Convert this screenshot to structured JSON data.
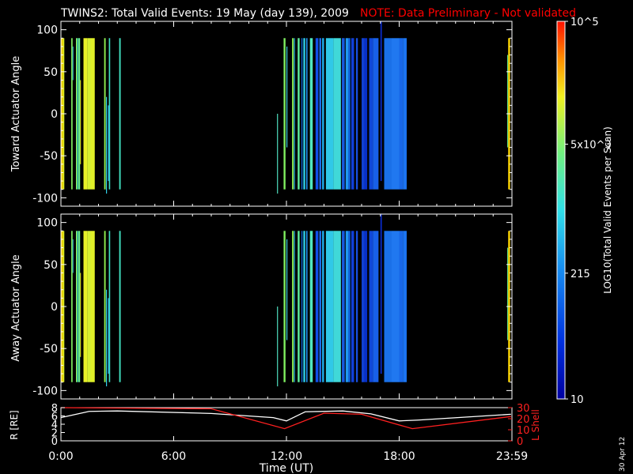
{
  "header": {
    "title": "TWINS2: Total Valid Events: 19 May (day 139), 2009",
    "note": "NOTE: Data Preliminary - Not validated"
  },
  "footer": {
    "xlabel": "Time (UT)",
    "date_stamp": "30 Apr 12"
  },
  "colors": {
    "background": "#000000",
    "axes": "#ffffff",
    "note": "#ff0000",
    "r_line": "#ffffff",
    "lshell_line": "#ff2020"
  },
  "chart_data": [
    {
      "type": "heatmap",
      "panel": "top",
      "ylabel": "Toward Actuator Angle",
      "xlim_hours": [
        0,
        24
      ],
      "ylim": [
        -110,
        110
      ],
      "yticks": [
        100,
        50,
        0,
        -50,
        -100
      ],
      "xticks": [
        "0:00",
        "6:00",
        "12:00",
        "18:00",
        "23:59"
      ],
      "angle_range": [
        -90,
        90
      ],
      "colorbar": {
        "label": "LOG10(Total Valid Events per Scan)",
        "scale": "log",
        "range": [
          10,
          100000
        ],
        "ticks": [
          "10",
          "215",
          "5x10^3",
          "10^5"
        ],
        "placement": "right"
      },
      "columns": [
        {
          "t0": 0.0,
          "t1": 0.1,
          "color": "#ffd800"
        },
        {
          "t0": 0.1,
          "t1": 0.18,
          "color": "#e0f020"
        },
        {
          "t0": 0.55,
          "t1": 0.62,
          "color": "#80f060"
        },
        {
          "t0": 0.62,
          "t1": 0.66,
          "color": "#30c0e0",
          "ymin": 40,
          "ymax": 80
        },
        {
          "t0": 0.8,
          "t1": 0.84,
          "color": "#a0f040"
        },
        {
          "t0": 0.84,
          "t1": 0.88,
          "color": "#40e0d0"
        },
        {
          "t0": 0.9,
          "t1": 1.02,
          "color": "#60e890"
        },
        {
          "t0": 1.02,
          "t1": 1.06,
          "color": "#f0f020",
          "ymin": -60,
          "ymax": 40
        },
        {
          "t0": 1.2,
          "t1": 1.4,
          "color": "#e8f028"
        },
        {
          "t0": 1.4,
          "t1": 1.6,
          "color": "#d8f030"
        },
        {
          "t0": 1.6,
          "t1": 1.8,
          "color": "#e0f028"
        },
        {
          "t0": 2.3,
          "t1": 2.38,
          "color": "#90f050"
        },
        {
          "t0": 2.4,
          "t1": 2.45,
          "color": "#30d0e8",
          "ymin": -95,
          "ymax": 20
        },
        {
          "t0": 2.5,
          "t1": 2.55,
          "color": "#20b0f0",
          "ymin": -80,
          "ymax": 10
        },
        {
          "t0": 2.55,
          "t1": 2.62,
          "color": "#40e0c0"
        },
        {
          "t0": 3.1,
          "t1": 3.18,
          "color": "#40e0c0"
        },
        {
          "t0": 11.5,
          "t1": 11.55,
          "color": "#50e0c0",
          "ymin": -95,
          "ymax": 0
        },
        {
          "t0": 11.85,
          "t1": 11.95,
          "color": "#80f060"
        },
        {
          "t0": 12.0,
          "t1": 12.05,
          "color": "#40d0e0",
          "ymin": -40,
          "ymax": 80
        },
        {
          "t0": 12.3,
          "t1": 12.38,
          "color": "#90f050"
        },
        {
          "t0": 12.4,
          "t1": 12.45,
          "color": "#30c0f0"
        },
        {
          "t0": 12.6,
          "t1": 12.7,
          "color": "#60f0a0"
        },
        {
          "t0": 12.8,
          "t1": 12.85,
          "color": "#1070f0"
        },
        {
          "t0": 12.9,
          "t1": 13.0,
          "color": "#30d0e8"
        },
        {
          "t0": 13.05,
          "t1": 13.12,
          "color": "#2090f0"
        },
        {
          "t0": 13.25,
          "t1": 13.4,
          "color": "#50e8c0"
        },
        {
          "t0": 13.55,
          "t1": 13.7,
          "color": "#1050e8"
        },
        {
          "t0": 13.75,
          "t1": 13.85,
          "color": "#2070f0"
        },
        {
          "t0": 13.9,
          "t1": 14.0,
          "color": "#20b0f0"
        },
        {
          "t0": 14.1,
          "t1": 14.5,
          "color": "#30c8e8"
        },
        {
          "t0": 14.5,
          "t1": 14.9,
          "color": "#40d8d8"
        },
        {
          "t0": 14.95,
          "t1": 15.1,
          "color": "#1858e0"
        },
        {
          "t0": 15.15,
          "t1": 15.3,
          "color": "#2098f0"
        },
        {
          "t0": 15.3,
          "t1": 15.4,
          "color": "#1060e0"
        },
        {
          "t0": 15.45,
          "t1": 15.6,
          "color": "#1040d8"
        },
        {
          "t0": 15.7,
          "t1": 15.8,
          "color": "#1850e0"
        },
        {
          "t0": 16.0,
          "t1": 16.15,
          "color": "#1040d0"
        },
        {
          "t0": 16.15,
          "t1": 16.3,
          "color": "#0830c8"
        },
        {
          "t0": 16.4,
          "t1": 16.6,
          "color": "#1048d8"
        },
        {
          "t0": 16.6,
          "t1": 16.9,
          "color": "#1860e8"
        },
        {
          "t0": 17.0,
          "t1": 17.08,
          "color": "#0828c0",
          "ymin": -80,
          "ymax": 110
        },
        {
          "t0": 17.2,
          "t1": 17.6,
          "color": "#1a70e8"
        },
        {
          "t0": 17.6,
          "t1": 18.0,
          "color": "#2078f0"
        },
        {
          "t0": 18.0,
          "t1": 18.2,
          "color": "#1868e8"
        },
        {
          "t0": 18.2,
          "t1": 18.4,
          "color": "#1c74f0"
        },
        {
          "t0": 23.75,
          "t1": 23.8,
          "color": "#60e890",
          "ymin": -40,
          "ymax": 70
        },
        {
          "t0": 23.8,
          "t1": 23.9,
          "color": "#ffd800"
        }
      ]
    },
    {
      "type": "heatmap",
      "panel": "bottom",
      "ylabel": "Away Actuator Angle",
      "xlim_hours": [
        0,
        24
      ],
      "ylim": [
        -110,
        110
      ],
      "yticks": [
        100,
        50,
        0,
        -50,
        -100
      ],
      "xticks": [
        "0:00",
        "6:00",
        "12:00",
        "18:00",
        "23:59"
      ],
      "angle_range": [
        -90,
        90
      ],
      "columns": [
        {
          "t0": 0.0,
          "t1": 0.1,
          "color": "#ffd800"
        },
        {
          "t0": 0.1,
          "t1": 0.18,
          "color": "#e0f020"
        },
        {
          "t0": 0.55,
          "t1": 0.62,
          "color": "#80f060"
        },
        {
          "t0": 0.62,
          "t1": 0.66,
          "color": "#30c0e0",
          "ymin": 40,
          "ymax": 80
        },
        {
          "t0": 0.8,
          "t1": 0.84,
          "color": "#a0f040"
        },
        {
          "t0": 0.84,
          "t1": 0.88,
          "color": "#40e0d0"
        },
        {
          "t0": 0.9,
          "t1": 1.02,
          "color": "#60e890"
        },
        {
          "t0": 1.02,
          "t1": 1.06,
          "color": "#f0f020",
          "ymin": -60,
          "ymax": 40
        },
        {
          "t0": 1.2,
          "t1": 1.4,
          "color": "#e8f028"
        },
        {
          "t0": 1.4,
          "t1": 1.6,
          "color": "#d8f030"
        },
        {
          "t0": 1.6,
          "t1": 1.8,
          "color": "#e0f028"
        },
        {
          "t0": 2.3,
          "t1": 2.38,
          "color": "#90f050"
        },
        {
          "t0": 2.4,
          "t1": 2.45,
          "color": "#30d0e8",
          "ymin": -95,
          "ymax": 20
        },
        {
          "t0": 2.5,
          "t1": 2.55,
          "color": "#20b0f0",
          "ymin": -80,
          "ymax": 10
        },
        {
          "t0": 2.55,
          "t1": 2.62,
          "color": "#40e0c0"
        },
        {
          "t0": 3.1,
          "t1": 3.18,
          "color": "#40e0c0"
        },
        {
          "t0": 11.5,
          "t1": 11.55,
          "color": "#50e0c0",
          "ymin": -95,
          "ymax": 0
        },
        {
          "t0": 11.85,
          "t1": 11.95,
          "color": "#80f060"
        },
        {
          "t0": 12.0,
          "t1": 12.05,
          "color": "#40d0e0",
          "ymin": -40,
          "ymax": 80
        },
        {
          "t0": 12.3,
          "t1": 12.38,
          "color": "#90f050"
        },
        {
          "t0": 12.4,
          "t1": 12.45,
          "color": "#30c0f0"
        },
        {
          "t0": 12.6,
          "t1": 12.7,
          "color": "#60f0a0"
        },
        {
          "t0": 12.8,
          "t1": 12.85,
          "color": "#1070f0"
        },
        {
          "t0": 12.9,
          "t1": 13.0,
          "color": "#30d0e8"
        },
        {
          "t0": 13.05,
          "t1": 13.12,
          "color": "#2090f0"
        },
        {
          "t0": 13.25,
          "t1": 13.4,
          "color": "#50e8c0"
        },
        {
          "t0": 13.55,
          "t1": 13.7,
          "color": "#1050e8"
        },
        {
          "t0": 13.75,
          "t1": 13.85,
          "color": "#2070f0"
        },
        {
          "t0": 13.9,
          "t1": 14.0,
          "color": "#20b0f0"
        },
        {
          "t0": 14.1,
          "t1": 14.5,
          "color": "#30c8e8"
        },
        {
          "t0": 14.5,
          "t1": 14.9,
          "color": "#40d8d8"
        },
        {
          "t0": 14.95,
          "t1": 15.1,
          "color": "#1858e0"
        },
        {
          "t0": 15.15,
          "t1": 15.3,
          "color": "#2098f0"
        },
        {
          "t0": 15.3,
          "t1": 15.4,
          "color": "#1060e0"
        },
        {
          "t0": 15.45,
          "t1": 15.6,
          "color": "#1040d8"
        },
        {
          "t0": 15.7,
          "t1": 15.8,
          "color": "#1850e0"
        },
        {
          "t0": 16.0,
          "t1": 16.15,
          "color": "#1040d0"
        },
        {
          "t0": 16.15,
          "t1": 16.3,
          "color": "#0830c8"
        },
        {
          "t0": 16.4,
          "t1": 16.6,
          "color": "#1048d8"
        },
        {
          "t0": 16.6,
          "t1": 16.9,
          "color": "#1860e8"
        },
        {
          "t0": 17.0,
          "t1": 17.08,
          "color": "#0828c0",
          "ymin": -80,
          "ymax": 110
        },
        {
          "t0": 17.2,
          "t1": 17.6,
          "color": "#1a70e8"
        },
        {
          "t0": 17.6,
          "t1": 18.0,
          "color": "#2078f0"
        },
        {
          "t0": 18.0,
          "t1": 18.2,
          "color": "#1868e8"
        },
        {
          "t0": 18.2,
          "t1": 18.4,
          "color": "#1c74f0"
        },
        {
          "t0": 23.75,
          "t1": 23.8,
          "color": "#60e890",
          "ymin": -40,
          "ymax": 70
        },
        {
          "t0": 23.8,
          "t1": 23.9,
          "color": "#ffd800"
        }
      ]
    },
    {
      "type": "line",
      "panel": "orbit",
      "ylabel": "R [RE]",
      "ylabel_right": "L Shell",
      "xlim_hours": [
        0,
        24
      ],
      "ylim": [
        0,
        8
      ],
      "ylim_right": [
        0,
        30
      ],
      "yticks": [
        "8",
        "6",
        "4",
        "2",
        "0"
      ],
      "yticks_right": [
        "30",
        "20",
        "10",
        "0"
      ],
      "series": [
        {
          "name": "R [RE]",
          "axis": "left",
          "x": [
            0,
            1.5,
            3,
            8,
            11.3,
            12,
            13,
            15,
            16.5,
            18,
            19,
            23.95
          ],
          "y": [
            5.6,
            7.1,
            7.2,
            6.6,
            5.6,
            4.8,
            7.0,
            7.2,
            6.5,
            4.8,
            5.0,
            6.4
          ]
        },
        {
          "name": "L Shell",
          "axis": "right",
          "x": [
            0,
            8,
            11.9,
            14,
            16,
            18.7,
            23.95
          ],
          "y": [
            30,
            29,
            11,
            25,
            24,
            11,
            22
          ]
        }
      ]
    }
  ]
}
